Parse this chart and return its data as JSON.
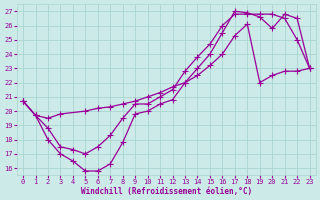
{
  "xlabel": "Windchill (Refroidissement éolien,°C)",
  "xlim": [
    -0.5,
    23.5
  ],
  "ylim": [
    15.5,
    27.5
  ],
  "xticks": [
    0,
    1,
    2,
    3,
    4,
    5,
    6,
    7,
    8,
    9,
    10,
    11,
    12,
    13,
    14,
    15,
    16,
    17,
    18,
    19,
    20,
    21,
    22,
    23
  ],
  "yticks": [
    16,
    17,
    18,
    19,
    20,
    21,
    22,
    23,
    24,
    25,
    26,
    27
  ],
  "bg_color": "#cceae7",
  "line_color": "#990099",
  "grid_color": "#aad4d0",
  "line1_x": [
    0,
    1,
    2,
    3,
    4,
    5,
    6,
    7,
    8,
    9,
    10,
    11,
    12,
    13,
    14,
    15,
    16,
    17,
    18,
    19,
    20,
    21,
    22,
    23
  ],
  "line1_y": [
    20.7,
    19.7,
    18.8,
    17.5,
    17.3,
    17.0,
    17.5,
    18.3,
    19.5,
    20.5,
    20.5,
    21.0,
    21.5,
    22.8,
    23.8,
    24.7,
    26.0,
    26.8,
    26.8,
    26.8,
    26.8,
    26.5,
    25.0,
    23.0
  ],
  "line2_x": [
    0,
    1,
    2,
    3,
    4,
    5,
    6,
    7,
    8,
    9,
    10,
    11,
    12,
    13,
    14,
    15,
    16,
    17,
    18,
    19,
    20,
    21,
    22,
    23
  ],
  "line2_y": [
    20.7,
    19.7,
    18.0,
    17.0,
    16.5,
    15.8,
    15.8,
    16.3,
    17.8,
    19.8,
    20.0,
    20.5,
    20.8,
    22.0,
    23.0,
    24.0,
    25.5,
    27.0,
    26.9,
    26.6,
    25.8,
    26.8,
    26.5,
    23.0
  ],
  "line3_x": [
    0,
    1,
    2,
    3,
    5,
    6,
    7,
    8,
    9,
    10,
    11,
    12,
    13,
    14,
    15,
    16,
    17,
    18,
    19,
    20,
    21,
    22,
    23
  ],
  "line3_y": [
    20.7,
    19.7,
    19.5,
    19.8,
    20.0,
    20.2,
    20.3,
    20.5,
    20.7,
    21.0,
    21.3,
    21.7,
    22.0,
    22.5,
    23.2,
    24.0,
    25.3,
    26.1,
    22.0,
    22.5,
    22.8,
    22.8,
    23.0
  ]
}
